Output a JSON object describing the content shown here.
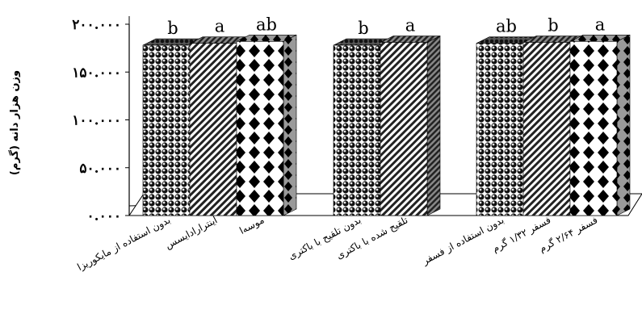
{
  "chart_data": {
    "type": "bar",
    "ylabel": "وزن هزار دانه (گرم)",
    "ylim": [
      0,
      200
    ],
    "yticks": [
      0,
      50,
      100,
      150,
      200
    ],
    "ytick_labels": [
      "۰.۰۰۰",
      "۵۰.۰۰۰",
      "۱۰۰.۰۰۰",
      "۱۵۰.۰۰۰",
      "۲۰۰.۰۰۰"
    ],
    "grid": false,
    "legend": "none",
    "categories": [
      "بدون استفاده از مایکوریزا",
      "اینترارادایسس",
      "موسه‌ا",
      "بدون تلقیح با باکتری",
      "تلقیح شده با باکتری",
      "بدون استفاده از فسفر",
      "فسفر ۱/۳۲ گرم",
      "فسفر ۲/۶۴ گرم"
    ],
    "groups": [
      {
        "indices": [
          0,
          1,
          2
        ]
      },
      {
        "indices": [
          3,
          4
        ]
      },
      {
        "indices": [
          5,
          6,
          7
        ]
      }
    ],
    "values": [
      178,
      180,
      182,
      178,
      181,
      180,
      181,
      182
    ],
    "significance": [
      "b",
      "a",
      "ab",
      "b",
      "a",
      "ab",
      "b",
      "a"
    ],
    "patterns": [
      "spheres",
      "diagonal",
      "checker",
      "spheres",
      "diagonal",
      "spheres",
      "diagonal",
      "checker"
    ]
  }
}
